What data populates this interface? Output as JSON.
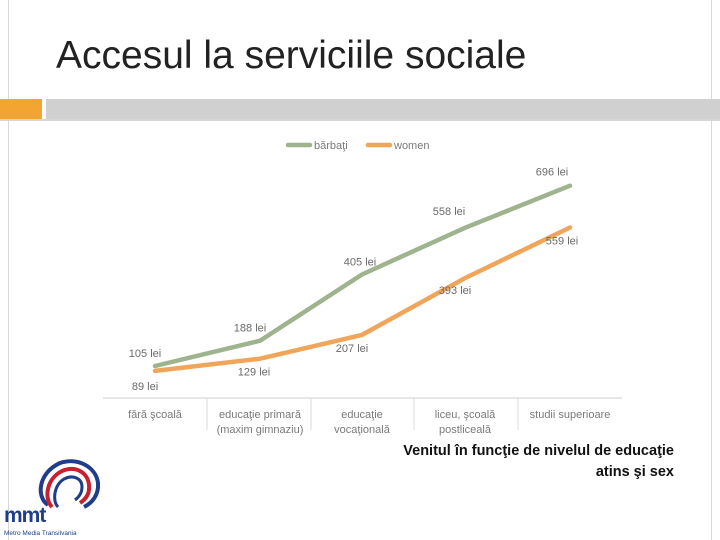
{
  "slide": {
    "title": "Accesul la serviciile sociale",
    "caption_line1": "Venitul în funcţie de nivelul de educaţie",
    "caption_line2": "atins şi sex"
  },
  "logo": {
    "name": "mmt",
    "subtitle": "Metro Media Transilvania"
  },
  "colors": {
    "accent": "#f2a531",
    "men_series": "#9fb48e",
    "women_series": "#f0a65a"
  },
  "chart_data": {
    "type": "line",
    "categories": [
      [
        "fără şcoală"
      ],
      [
        "educaţie primară",
        "(maxim gimnaziu)"
      ],
      [
        "educaţie",
        "vocaţională"
      ],
      [
        "liceu, şcoală",
        "postliceală"
      ],
      [
        "studii superioare"
      ]
    ],
    "series": [
      {
        "name": "bărbaţi",
        "values": [
          105,
          188,
          405,
          558,
          696
        ],
        "labels": [
          "105 lei",
          "188 lei",
          "405 lei",
          "558 lei",
          "696 lei"
        ]
      },
      {
        "name": "women",
        "values": [
          89,
          129,
          207,
          393,
          559
        ],
        "labels": [
          "89 lei",
          "129 lei",
          "207 lei",
          "393 lei",
          "559 lei"
        ]
      }
    ],
    "legend": "top-center",
    "grid": false,
    "ylim": [
      0,
      800
    ]
  }
}
